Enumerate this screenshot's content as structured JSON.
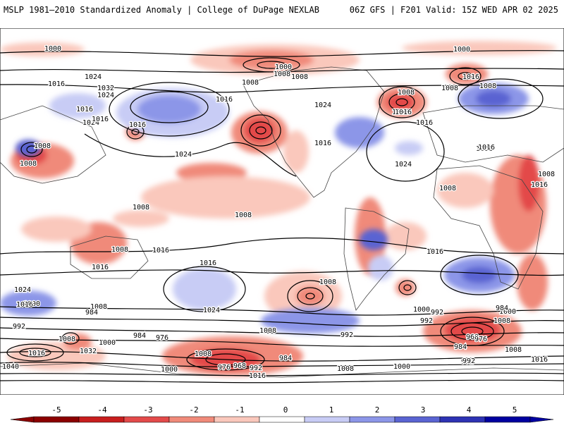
{
  "header": {
    "title_left": "MSLP 1981–2010 Standardized Anomaly | College of DuPage NEXLAB",
    "title_right": "06Z GFS | F201 Valid: 15Z WED APR 02 2025"
  },
  "colorbar": {
    "ticks": [
      "-5",
      "-4",
      "-3",
      "-2",
      "-1",
      "0",
      "1",
      "2",
      "3",
      "4",
      "5"
    ],
    "colors": [
      "#8b0000",
      "#c81e1e",
      "#e34a4a",
      "#f08a7a",
      "#fac8bc",
      "#ffffff",
      "#c8ccf5",
      "#8c96e8",
      "#5a64d2",
      "#2d32b4",
      "#0000a0"
    ]
  },
  "isobar_labels": [
    "1000",
    "1000",
    "1008",
    "1000",
    "1008",
    "1016",
    "1016",
    "1024",
    "1032",
    "1024",
    "1016",
    "1024",
    "1016",
    "1008",
    "1008",
    "1016",
    "1000",
    "1008",
    "1016",
    "1016",
    "1024",
    "1024",
    "1016",
    "1024",
    "1008",
    "1008",
    "1008",
    "1008",
    "1008",
    "1016",
    "1016",
    "1008",
    "1008",
    "1008",
    "1016",
    "1016",
    "1016",
    "1008",
    "1016",
    "1016",
    "1024",
    "1024",
    "1000",
    "1008",
    "992",
    "1016",
    "1008",
    "1000",
    "1008",
    "1000",
    "992",
    "984",
    "1008",
    "1016",
    "1040",
    "1032",
    "1000",
    "1008",
    "992",
    "984",
    "976",
    "1008",
    "1000",
    "976",
    "968",
    "992",
    "984",
    "1016",
    "992",
    "1008",
    "1000",
    "992",
    "984",
    "960",
    "984",
    "976",
    "1008",
    "992",
    "1016"
  ]
}
